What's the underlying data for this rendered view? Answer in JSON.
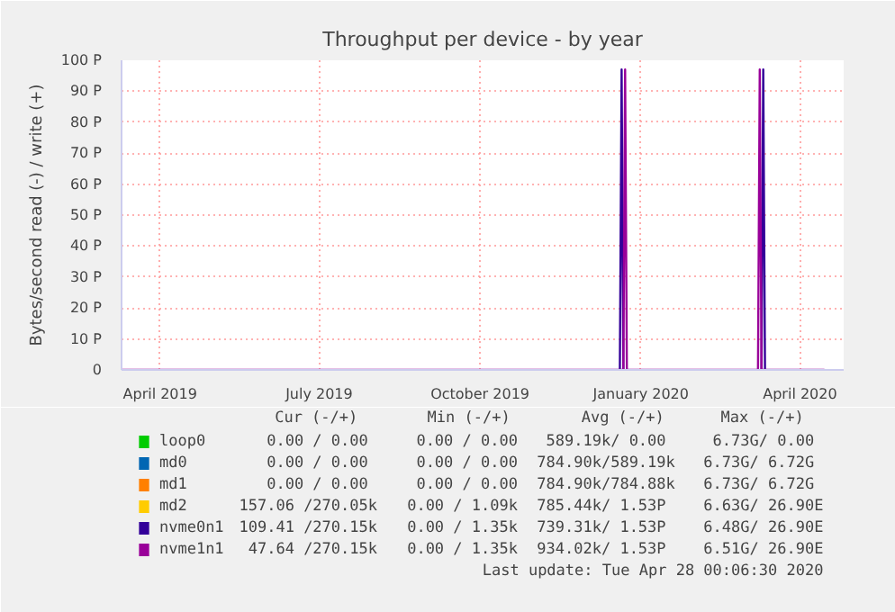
{
  "chart_data": {
    "type": "line",
    "title": "Throughput per device - by year",
    "ylabel": "Bytes/second read (-) / write (+)",
    "x": [
      "2019-03-10",
      "2019-12-20",
      "2019-12-21",
      "2019-12-22",
      "2019-12-23",
      "2019-12-24",
      "2020-03-08",
      "2020-03-09",
      "2020-03-10",
      "2020-03-11",
      "2020-03-12",
      "2020-04-15"
    ],
    "series": [
      {
        "name": "loop0",
        "color": "#00cc00",
        "values": [
          null,
          null,
          null,
          null,
          null,
          null,
          null,
          null,
          null,
          null,
          null,
          null
        ]
      },
      {
        "name": "md0",
        "color": "#0066b3",
        "values": [
          null,
          null,
          null,
          null,
          null,
          null,
          null,
          null,
          null,
          null,
          null,
          null
        ]
      },
      {
        "name": "md1",
        "color": "#ff8000",
        "values": [
          null,
          null,
          null,
          null,
          null,
          null,
          null,
          null,
          null,
          null,
          null,
          null
        ]
      },
      {
        "name": "md2",
        "color": "#ffcc00",
        "values": [
          null,
          null,
          null,
          null,
          null,
          null,
          null,
          null,
          null,
          null,
          null,
          null
        ]
      },
      {
        "name": "nvme0n1",
        "color": "#330099",
        "values": [
          null,
          0,
          97,
          0,
          null,
          null,
          null,
          null,
          0,
          97,
          0,
          null
        ]
      },
      {
        "name": "nvme1n1",
        "color": "#990099",
        "values": [
          0,
          0,
          0,
          0,
          97,
          0,
          0,
          97,
          0,
          0,
          0,
          0
        ]
      }
    ],
    "xlim": [
      "2019-03-10",
      "2020-04-26"
    ],
    "xticks": [
      {
        "value": "2019-04-01",
        "label": "April 2019"
      },
      {
        "value": "2019-07-01",
        "label": "July 2019"
      },
      {
        "value": "2019-10-01",
        "label": "October 2019"
      },
      {
        "value": "2020-01-01",
        "label": "January 2020"
      },
      {
        "value": "2020-04-01",
        "label": "April 2020"
      }
    ],
    "ylim": [
      0,
      100
    ],
    "yticks": [
      0,
      {
        "value": 10,
        "label": "10 P"
      },
      {
        "value": 20,
        "label": "20 P"
      },
      {
        "value": 30,
        "label": "30 P"
      },
      {
        "value": 40,
        "label": "40 P"
      },
      {
        "value": 50,
        "label": "50 P"
      },
      {
        "value": 60,
        "label": "60 P"
      },
      {
        "value": 70,
        "label": "70 P"
      },
      {
        "value": 80,
        "label": "80 P"
      },
      {
        "value": 90,
        "label": "90 P"
      },
      {
        "value": 100,
        "label": "100 P"
      }
    ],
    "grid": true,
    "legend": "bottom",
    "marker": "none",
    "line_style": "solid",
    "annotations": [
      "Cur (-/+)",
      "Min (-/+)",
      "Avg (-/+)",
      "Max (-/+)",
      "0.00 /  0.00",
      "0.00 /  0.00",
      "589.19k/  0.00",
      "6.73G/  0.00",
      "0.00 /  0.00",
      "0.00 /  0.00",
      "784.90k/589.19k",
      "6.73G/  6.72G",
      "0.00 /  0.00",
      "0.00 /  0.00",
      "784.90k/784.88k",
      "6.73G/  6.72G",
      "157.06 /270.05k",
      "0.00 /  1.09k",
      "785.44k/  1.53P",
      "6.63G/ 26.90E",
      "109.41 /270.15k",
      "0.00 /  1.35k",
      "739.31k/  1.53P",
      "6.48G/ 26.90E",
      "47.64 /270.15k",
      "0.00 /  1.35k",
      "934.02k/  1.53P",
      "6.51G/ 26.90E",
      "Last update: Tue Apr 28 00:06:30 2020"
    ]
  }
}
